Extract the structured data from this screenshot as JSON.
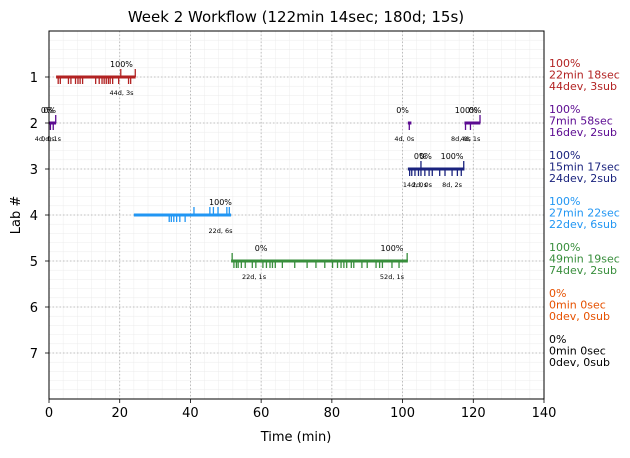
{
  "chart_data": {
    "type": "timeline",
    "title": "Week 2 Workflow (122min 14sec; 180d; 15s)",
    "xlabel": "Time (min)",
    "ylabel": "Lab #",
    "xlim": [
      0,
      140
    ],
    "ylim": [
      8,
      0
    ],
    "x_ticks": [
      0,
      20,
      40,
      60,
      80,
      100,
      120,
      140
    ],
    "y_ticks": [
      1,
      2,
      3,
      4,
      5,
      6,
      7
    ],
    "grid": true,
    "labs": [
      {
        "lab": 1,
        "color": "#b22222",
        "segments": [
          [
            2.0,
            24.5
          ]
        ],
        "ticks_down": [
          2.6,
          3.2,
          5.5,
          6.2,
          7.5,
          8.2,
          8.8,
          9.5,
          13.2,
          14.2,
          15.0,
          15.6,
          16.2,
          16.8,
          17.3,
          18.0,
          19.7,
          22.5,
          23.1
        ],
        "ticks_up": [
          20.3,
          24.4
        ],
        "labels": [
          {
            "x": 20.5,
            "side": "above",
            "text": "100%"
          },
          {
            "x": 20.5,
            "side": "below",
            "text": "44d, 3s"
          }
        ],
        "summary": [
          "100%",
          "22min 18sec",
          "44dev, 3sub"
        ]
      },
      {
        "lab": 2,
        "color": "#5b0a91",
        "segments": [
          [
            0.0,
            2.0
          ],
          [
            101.5,
            102.5
          ],
          [
            117.5,
            122.0
          ]
        ],
        "ticks_down": [
          0.4,
          1.2,
          101.9,
          117.8,
          119.2
        ],
        "ticks_up": [
          1.9,
          121.9
        ],
        "labels": [
          {
            "x": -0.5,
            "side": "above",
            "text": "0%"
          },
          {
            "x": 0.2,
            "side": "above",
            "text": "0%"
          },
          {
            "x": -1.2,
            "side": "below",
            "text": "4d, 0s"
          },
          {
            "x": 0.6,
            "side": "below",
            "text": "0d, 1s"
          },
          {
            "x": 100.0,
            "side": "above",
            "text": "0%"
          },
          {
            "x": 100.5,
            "side": "below",
            "text": "4d, 0s"
          },
          {
            "x": 118.0,
            "side": "above",
            "text": "100%"
          },
          {
            "x": 120.5,
            "side": "above",
            "text": "0%"
          },
          {
            "x": 116.5,
            "side": "below",
            "text": "8d, 0s"
          },
          {
            "x": 119.2,
            "side": "below",
            "text": "4d, 1s"
          }
        ],
        "summary": [
          "100%",
          "7min 58sec",
          "16dev, 2sub"
        ]
      },
      {
        "lab": 3,
        "color": "#1a237e",
        "segments": [
          [
            101.5,
            117.5
          ]
        ],
        "ticks_down": [
          102.0,
          102.6,
          103.5,
          104.5,
          105.2,
          106.3,
          107.5,
          108.4,
          110.5,
          112.0,
          114.0,
          115.5,
          116.6
        ],
        "ticks_up": [
          105.2,
          117.3
        ],
        "labels": [
          {
            "x": 105.0,
            "side": "above",
            "text": "0%"
          },
          {
            "x": 106.5,
            "side": "above",
            "text": "0%"
          },
          {
            "x": 114.0,
            "side": "above",
            "text": "100%"
          },
          {
            "x": 103.5,
            "side": "below",
            "text": "14d, 0s"
          },
          {
            "x": 105.5,
            "side": "below",
            "text": "2d, 0s"
          },
          {
            "x": 114.0,
            "side": "below",
            "text": "8d, 2s"
          }
        ],
        "summary": [
          "100%",
          "15min 17sec",
          "24dev, 2sub"
        ]
      },
      {
        "lab": 4,
        "color": "#2196f3",
        "segments": [
          [
            24.0,
            51.5
          ]
        ],
        "ticks_down": [
          34.0,
          34.6,
          35.3,
          36.1,
          37.0,
          38.5
        ],
        "ticks_up": [
          41.0,
          45.5,
          46.5,
          47.8,
          50.3,
          51.0
        ],
        "labels": [
          {
            "x": 48.5,
            "side": "above",
            "text": "100%"
          },
          {
            "x": 48.5,
            "side": "below",
            "text": "22d, 6s"
          }
        ],
        "summary": [
          "100%",
          "27min 22sec",
          "22dev, 6sub"
        ]
      },
      {
        "lab": 5,
        "color": "#388e3c",
        "segments": [
          [
            51.5,
            101.5
          ]
        ],
        "ticks_down": [
          52.3,
          53.0,
          53.5,
          54.4,
          55.5,
          57.5,
          58.5,
          60.5,
          61.5,
          62.5,
          63.2,
          64.0,
          66.0,
          69.5,
          73.0,
          75.5,
          78.0,
          80.2,
          81.6,
          82.6,
          83.4,
          84.2,
          85.5,
          86.2,
          88.5,
          90.0,
          92.5,
          93.5,
          94.3,
          97.0,
          99.0
        ],
        "ticks_up": [
          51.8,
          101.3
        ],
        "labels": [
          {
            "x": 60.0,
            "side": "above",
            "text": "0%"
          },
          {
            "x": 58.0,
            "side": "below",
            "text": "22d, 1s"
          },
          {
            "x": 97.0,
            "side": "above",
            "text": "100%"
          },
          {
            "x": 97.0,
            "side": "below",
            "text": "52d, 1s"
          }
        ],
        "summary": [
          "100%",
          "49min 19sec",
          "74dev, 2sub"
        ]
      },
      {
        "lab": 6,
        "color": "#e65100",
        "segments": [],
        "ticks_down": [],
        "ticks_up": [],
        "labels": [],
        "summary": [
          "0%",
          "0min 0sec",
          "0dev, 0sub"
        ]
      },
      {
        "lab": 7,
        "color": "#000000",
        "segments": [],
        "ticks_down": [],
        "ticks_up": [],
        "labels": [],
        "summary": [
          "0%",
          "0min 0sec",
          "0dev, 0sub"
        ]
      }
    ]
  }
}
